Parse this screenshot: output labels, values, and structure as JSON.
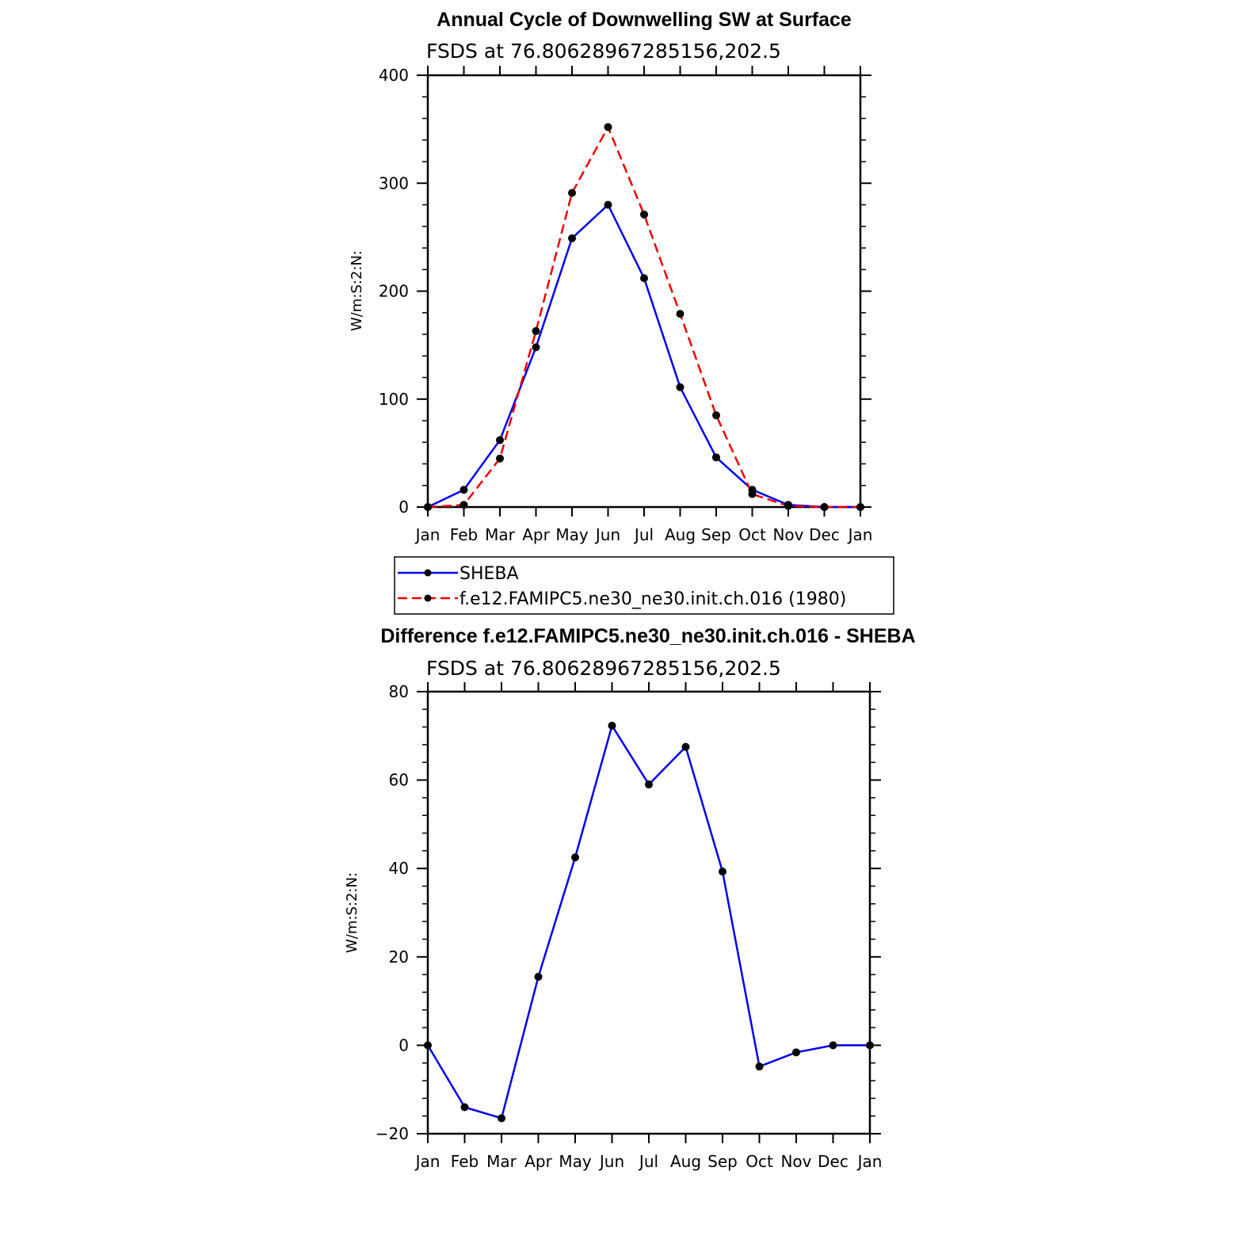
{
  "chart_data": [
    {
      "type": "line",
      "title": "Annual Cycle of Downwelling SW at Surface",
      "subtitle": "FSDS  at  76.80628967285156,202.5",
      "ylabel": "W/m:S:2:N:",
      "ylim": [
        0,
        400
      ],
      "yticks": [
        0,
        100,
        200,
        300,
        400
      ],
      "categories": [
        "Jan",
        "Feb",
        "Mar",
        "Apr",
        "May",
        "Jun",
        "Jul",
        "Aug",
        "Sep",
        "Oct",
        "Nov",
        "Dec",
        "Jan"
      ],
      "series": [
        {
          "name": "SHEBA",
          "color": "#0000ee",
          "dash": "solid",
          "values": [
            0,
            16,
            62,
            148,
            249,
            280,
            212,
            111,
            46,
            16,
            2,
            0,
            0
          ]
        },
        {
          "name": "f.e12.FAMIPC5.ne30_ne30.init.ch.016  (1980)",
          "color": "#ee0000",
          "dash": "dashed",
          "values": [
            0,
            2,
            45,
            163,
            291,
            352,
            271,
            179,
            85,
            12,
            1,
            0,
            0
          ]
        }
      ],
      "legend": "below"
    },
    {
      "type": "line",
      "title": "Difference f.e12.FAMIPC5.ne30_ne30.init.ch.016 - SHEBA",
      "subtitle": "FSDS  at  76.80628967285156,202.5",
      "ylabel": "W/m:S:2:N:",
      "ylim": [
        -20,
        80
      ],
      "yticks": [
        -20,
        0,
        20,
        40,
        60,
        80
      ],
      "categories": [
        "Jan",
        "Feb",
        "Mar",
        "Apr",
        "May",
        "Jun",
        "Jul",
        "Aug",
        "Sep",
        "Oct",
        "Nov",
        "Dec",
        "Jan"
      ],
      "series": [
        {
          "color": "#0000ee",
          "dash": "solid",
          "values": [
            0,
            -14,
            -16.5,
            15.5,
            42.5,
            72.3,
            59,
            67.5,
            39.3,
            -4.8,
            -1.6,
            0,
            0
          ]
        }
      ]
    }
  ]
}
